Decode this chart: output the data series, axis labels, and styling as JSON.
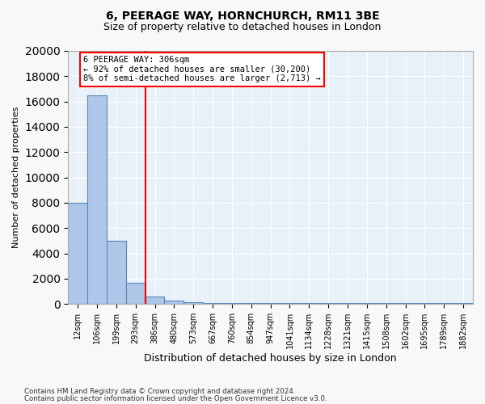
{
  "title1": "6, PEERAGE WAY, HORNCHURCH, RM11 3BE",
  "title2": "Size of property relative to detached houses in London",
  "xlabel": "Distribution of detached houses by size in London",
  "ylabel": "Number of detached properties",
  "bins": [
    "12sqm",
    "106sqm",
    "199sqm",
    "293sqm",
    "386sqm",
    "480sqm",
    "573sqm",
    "667sqm",
    "760sqm",
    "854sqm",
    "947sqm",
    "1041sqm",
    "1134sqm",
    "1228sqm",
    "1321sqm",
    "1415sqm",
    "1508sqm",
    "1602sqm",
    "1695sqm",
    "1789sqm",
    "1882sqm"
  ],
  "bar_heights": [
    8000,
    16500,
    5000,
    1700,
    600,
    300,
    150,
    100,
    100,
    100,
    60,
    60,
    50,
    50,
    50,
    50,
    50,
    50,
    50,
    50,
    50
  ],
  "bar_color": "#aec6e8",
  "bar_edge_color": "#5588bb",
  "red_line_x": 3.5,
  "annotation_title": "6 PEERAGE WAY: 306sqm",
  "annotation_line1": "← 92% of detached houses are smaller (30,200)",
  "annotation_line2": "8% of semi-detached houses are larger (2,713) →",
  "ylim": [
    0,
    20000
  ],
  "yticks": [
    0,
    2000,
    4000,
    6000,
    8000,
    10000,
    12000,
    14000,
    16000,
    18000,
    20000
  ],
  "footnote1": "Contains HM Land Registry data © Crown copyright and database right 2024.",
  "footnote2": "Contains public sector information licensed under the Open Government Licence v3.0.",
  "plot_bg_color": "#e8f0f8"
}
